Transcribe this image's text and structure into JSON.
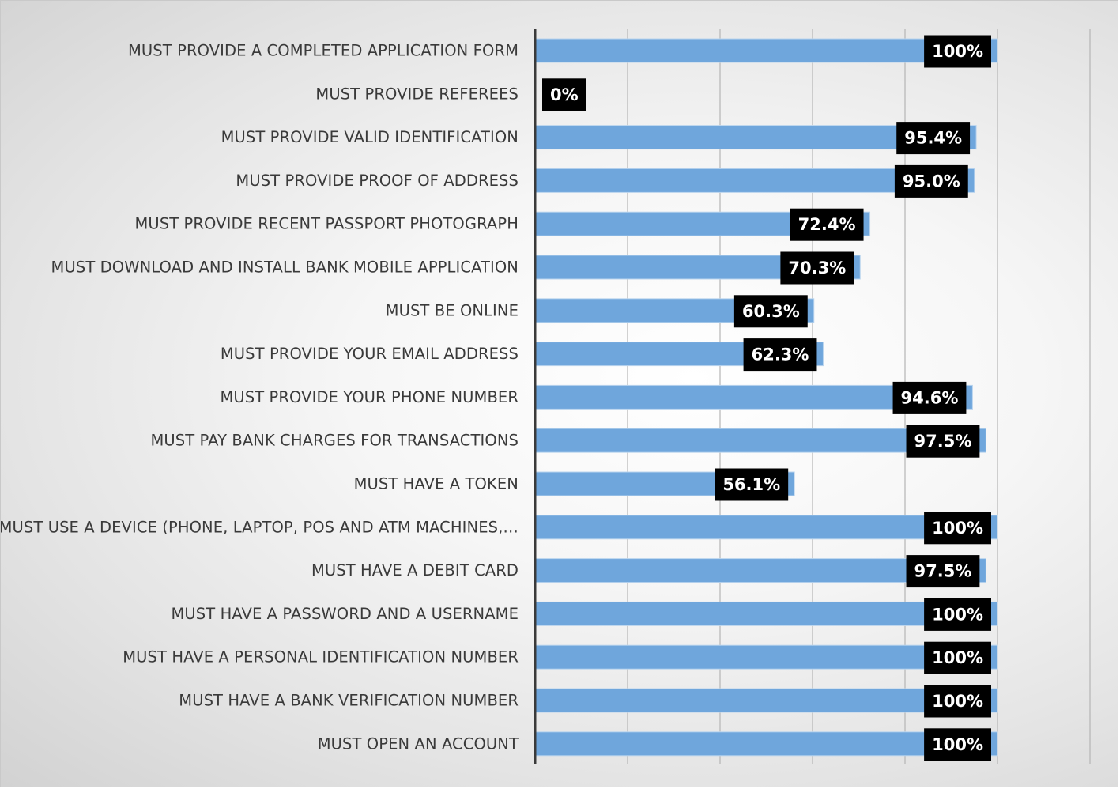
{
  "chart_data": {
    "type": "bar",
    "orientation": "horizontal",
    "categories": [
      "MUST PROVIDE A COMPLETED APPLICATION FORM",
      "MUST PROVIDE REFEREES",
      "MUST PROVIDE VALID IDENTIFICATION",
      "MUST PROVIDE PROOF OF ADDRESS",
      "MUST PROVIDE RECENT PASSPORT PHOTOGRAPH",
      "MUST DOWNLOAD AND INSTALL BANK MOBILE APPLICATION",
      "MUST BE ONLINE",
      "MUST PROVIDE YOUR EMAIL ADDRESS",
      "MUST PROVIDE YOUR PHONE NUMBER",
      "MUST PAY BANK CHARGES FOR TRANSACTIONS",
      "MUST HAVE A TOKEN",
      "MUST USE A DEVICE (PHONE, LAPTOP, POS AND ATM MACHINES,…",
      "MUST HAVE A DEBIT CARD",
      "MUST HAVE A PASSWORD AND A USERNAME",
      "MUST HAVE A PERSONAL IDENTIFICATION NUMBER",
      "MUST HAVE  A BANK VERIFICATION NUMBER",
      "MUST OPEN AN ACCOUNT"
    ],
    "values": [
      100,
      0,
      95.4,
      95.0,
      72.4,
      70.3,
      60.3,
      62.3,
      94.6,
      97.5,
      56.1,
      100,
      97.5,
      100,
      100,
      100,
      100
    ],
    "data_labels": [
      "100%",
      "0%",
      "95.4%",
      "95.0%",
      "72.4%",
      "70.3%",
      "60.3%",
      "62.3%",
      "94.6%",
      "97.5%",
      "56.1%",
      "100%",
      "97.5%",
      "100%",
      "100%",
      "100%",
      "100%"
    ],
    "xlim": [
      0,
      120
    ],
    "grid": true,
    "title": "",
    "xlabel": "",
    "ylabel": "",
    "colors": {
      "bar": "#6fa6dc",
      "bar_edge": "#b9d4ee",
      "label_bg": "#000000",
      "label_text": "#ffffff",
      "axis": "#3a3a3a",
      "grid": "#b5b5b5"
    }
  }
}
